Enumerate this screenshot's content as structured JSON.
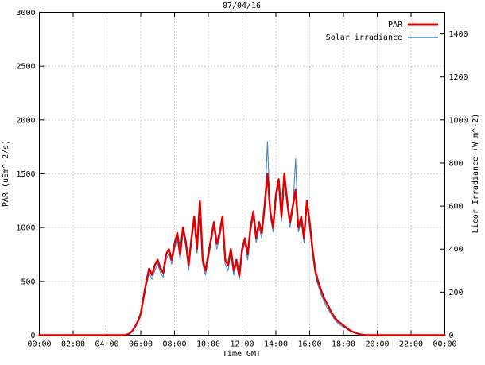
{
  "chart_data": {
    "type": "line",
    "title": "07/04/16",
    "xlabel": "Time GMT",
    "ylabel_left": "PAR (uEm^-2/s)",
    "ylabel_right": "Licor Irradiance (W m^-2)",
    "grid": true,
    "legend_position": "top-right-inside",
    "x_unit": "minutes_from_midnight",
    "xlim_minutes": [
      0,
      1440
    ],
    "x_ticks": {
      "minutes": [
        0,
        120,
        240,
        360,
        480,
        600,
        720,
        840,
        960,
        1080,
        1200,
        1320,
        1440
      ],
      "labels": [
        "00:00",
        "02:00",
        "04:00",
        "06:00",
        "08:00",
        "10:00",
        "12:00",
        "14:00",
        "16:00",
        "18:00",
        "20:00",
        "22:00",
        "00:00"
      ]
    },
    "ylim_left": [
      0,
      3000
    ],
    "y_ticks_left": [
      0,
      500,
      1000,
      1500,
      2000,
      2500,
      3000
    ],
    "ylim_right": [
      0,
      1500
    ],
    "y_ticks_right": [
      0,
      200,
      400,
      600,
      800,
      1000,
      1200,
      1400
    ],
    "series": [
      {
        "name": "PAR",
        "axis": "left",
        "color": "#dd0000",
        "line_width": 2.4,
        "points": [
          [
            0,
            0
          ],
          [
            300,
            0
          ],
          [
            310,
            5
          ],
          [
            320,
            15
          ],
          [
            330,
            40
          ],
          [
            340,
            80
          ],
          [
            350,
            130
          ],
          [
            360,
            200
          ],
          [
            370,
            350
          ],
          [
            380,
            500
          ],
          [
            390,
            620
          ],
          [
            400,
            560
          ],
          [
            410,
            650
          ],
          [
            420,
            700
          ],
          [
            430,
            620
          ],
          [
            440,
            580
          ],
          [
            450,
            750
          ],
          [
            460,
            800
          ],
          [
            470,
            700
          ],
          [
            480,
            850
          ],
          [
            490,
            950
          ],
          [
            500,
            750
          ],
          [
            510,
            1000
          ],
          [
            520,
            870
          ],
          [
            530,
            650
          ],
          [
            540,
            900
          ],
          [
            550,
            1100
          ],
          [
            560,
            800
          ],
          [
            570,
            1250
          ],
          [
            580,
            700
          ],
          [
            590,
            600
          ],
          [
            600,
            750
          ],
          [
            610,
            900
          ],
          [
            620,
            1050
          ],
          [
            630,
            850
          ],
          [
            640,
            950
          ],
          [
            650,
            1100
          ],
          [
            660,
            700
          ],
          [
            670,
            650
          ],
          [
            680,
            800
          ],
          [
            690,
            600
          ],
          [
            700,
            700
          ],
          [
            710,
            550
          ],
          [
            720,
            800
          ],
          [
            730,
            900
          ],
          [
            740,
            750
          ],
          [
            750,
            1000
          ],
          [
            760,
            1150
          ],
          [
            770,
            900
          ],
          [
            780,
            1050
          ],
          [
            790,
            950
          ],
          [
            800,
            1200
          ],
          [
            810,
            1500
          ],
          [
            820,
            1150
          ],
          [
            830,
            1000
          ],
          [
            840,
            1300
          ],
          [
            850,
            1450
          ],
          [
            860,
            1100
          ],
          [
            870,
            1500
          ],
          [
            880,
            1250
          ],
          [
            890,
            1050
          ],
          [
            900,
            1200
          ],
          [
            910,
            1350
          ],
          [
            920,
            1000
          ],
          [
            930,
            1100
          ],
          [
            940,
            900
          ],
          [
            950,
            1250
          ],
          [
            960,
            1050
          ],
          [
            970,
            800
          ],
          [
            980,
            600
          ],
          [
            990,
            500
          ],
          [
            1000,
            420
          ],
          [
            1010,
            350
          ],
          [
            1020,
            300
          ],
          [
            1030,
            250
          ],
          [
            1040,
            200
          ],
          [
            1050,
            160
          ],
          [
            1060,
            130
          ],
          [
            1070,
            110
          ],
          [
            1080,
            90
          ],
          [
            1090,
            70
          ],
          [
            1100,
            50
          ],
          [
            1110,
            35
          ],
          [
            1120,
            25
          ],
          [
            1130,
            15
          ],
          [
            1140,
            8
          ],
          [
            1150,
            4
          ],
          [
            1160,
            0
          ],
          [
            1440,
            0
          ]
        ]
      },
      {
        "name": "Solar irradiance",
        "axis": "right",
        "color": "#4488cc",
        "line_width": 1.1,
        "points": [
          [
            0,
            0
          ],
          [
            300,
            0
          ],
          [
            310,
            2
          ],
          [
            320,
            7
          ],
          [
            330,
            18
          ],
          [
            340,
            38
          ],
          [
            350,
            60
          ],
          [
            360,
            90
          ],
          [
            370,
            160
          ],
          [
            380,
            230
          ],
          [
            390,
            290
          ],
          [
            400,
            260
          ],
          [
            410,
            300
          ],
          [
            420,
            330
          ],
          [
            430,
            290
          ],
          [
            440,
            270
          ],
          [
            450,
            350
          ],
          [
            460,
            380
          ],
          [
            470,
            330
          ],
          [
            480,
            400
          ],
          [
            490,
            450
          ],
          [
            500,
            350
          ],
          [
            510,
            480
          ],
          [
            520,
            410
          ],
          [
            530,
            300
          ],
          [
            540,
            430
          ],
          [
            550,
            530
          ],
          [
            560,
            380
          ],
          [
            570,
            600
          ],
          [
            580,
            330
          ],
          [
            590,
            280
          ],
          [
            600,
            350
          ],
          [
            610,
            430
          ],
          [
            620,
            500
          ],
          [
            630,
            400
          ],
          [
            640,
            450
          ],
          [
            650,
            530
          ],
          [
            660,
            330
          ],
          [
            670,
            300
          ],
          [
            680,
            380
          ],
          [
            690,
            280
          ],
          [
            700,
            330
          ],
          [
            710,
            260
          ],
          [
            720,
            380
          ],
          [
            730,
            430
          ],
          [
            740,
            350
          ],
          [
            750,
            480
          ],
          [
            760,
            550
          ],
          [
            770,
            430
          ],
          [
            780,
            500
          ],
          [
            790,
            450
          ],
          [
            800,
            580
          ],
          [
            810,
            900
          ],
          [
            820,
            550
          ],
          [
            830,
            480
          ],
          [
            840,
            620
          ],
          [
            850,
            700
          ],
          [
            860,
            530
          ],
          [
            870,
            720
          ],
          [
            880,
            600
          ],
          [
            890,
            500
          ],
          [
            900,
            580
          ],
          [
            910,
            820
          ],
          [
            920,
            480
          ],
          [
            930,
            530
          ],
          [
            940,
            430
          ],
          [
            950,
            600
          ],
          [
            960,
            500
          ],
          [
            970,
            380
          ],
          [
            980,
            280
          ],
          [
            990,
            230
          ],
          [
            1000,
            190
          ],
          [
            1010,
            160
          ],
          [
            1020,
            130
          ],
          [
            1030,
            110
          ],
          [
            1040,
            90
          ],
          [
            1050,
            70
          ],
          [
            1060,
            55
          ],
          [
            1070,
            45
          ],
          [
            1080,
            38
          ],
          [
            1090,
            30
          ],
          [
            1100,
            22
          ],
          [
            1110,
            15
          ],
          [
            1120,
            10
          ],
          [
            1130,
            6
          ],
          [
            1140,
            3
          ],
          [
            1150,
            1
          ],
          [
            1160,
            0
          ],
          [
            1440,
            0
          ]
        ]
      }
    ]
  }
}
